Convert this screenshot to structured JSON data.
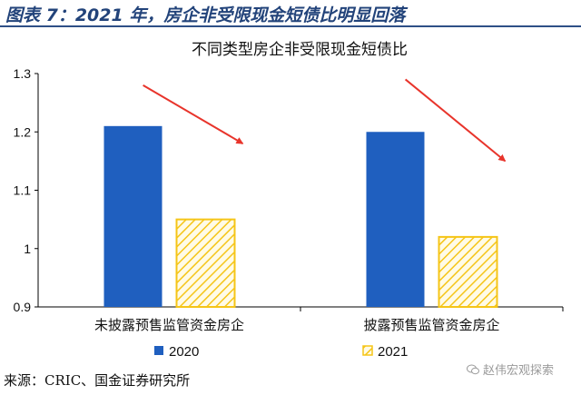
{
  "figure": {
    "title": "图表 7：2021 年，房企非受限现金短债比明显回落",
    "source": "来源：CRIC、国金证券研究所",
    "watermark": "赵伟宏观探索"
  },
  "colors": {
    "s2020": "#1f5fbf",
    "s2021": "#f5c518",
    "arrow": "#e8342b"
  },
  "icons": {
    "watermark_icon": "wechat-icon"
  },
  "chart_data": {
    "type": "bar",
    "title": "不同类型房企非受限现金短债比",
    "categories": [
      "未披露预售监管资金房企",
      "披露预售监管资金房企"
    ],
    "series": [
      {
        "name": "2020",
        "values": [
          1.21,
          1.2
        ]
      },
      {
        "name": "2021",
        "values": [
          1.05,
          1.02
        ]
      }
    ],
    "ylim": [
      0.9,
      1.3
    ],
    "yticks": [
      "0.9",
      "1",
      "1.1",
      "1.2",
      "1.3"
    ],
    "xlabel": "",
    "ylabel": "",
    "grid": false,
    "legend": "bottom",
    "annotations": [
      {
        "type": "arrow",
        "category": 0,
        "from": 1.28,
        "to": 1.18
      },
      {
        "type": "arrow",
        "category": 1,
        "from": 1.29,
        "to": 1.15
      }
    ]
  }
}
